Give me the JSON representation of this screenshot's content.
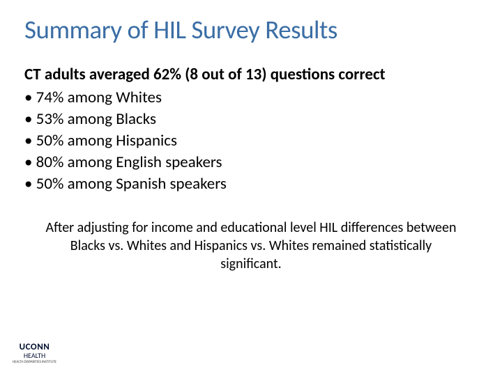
{
  "slide": {
    "title": "Summary of HIL Survey Results",
    "headline": "CT adults averaged 62% (8 out of 13) questions correct",
    "bullets": [
      "74% among Whites",
      "53% among Blacks",
      "50% among Hispanics",
      "80% among English speakers",
      "50% among Spanish speakers"
    ],
    "footnote": "After adjusting for income and educational level HIL differences between Blacks vs. Whites and Hispanics vs. Whites remained statistically significant."
  },
  "logo": {
    "main": "UCONN",
    "sub": "HEALTH",
    "tag": "HEALTH DISPARITIES INSTITUTE"
  },
  "colors": {
    "title_color": "#3b6ea5",
    "text_color": "#000000",
    "background": "#ffffff",
    "logo_color": "#000e2f"
  },
  "typography": {
    "title_fontsize": 37,
    "headline_fontsize": 23,
    "bullet_fontsize": 23,
    "footnote_fontsize": 20
  }
}
